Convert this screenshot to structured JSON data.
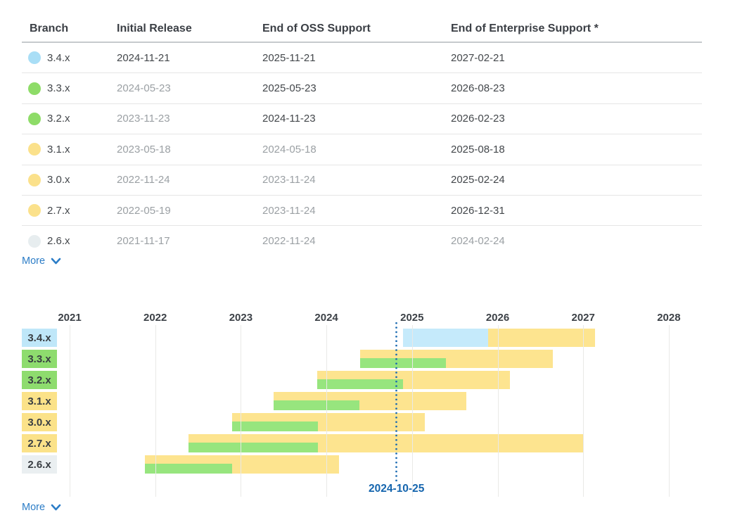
{
  "table": {
    "headers": [
      "Branch",
      "Initial Release",
      "End of OSS Support",
      "End of Enterprise Support *"
    ],
    "rows": [
      {
        "branch": "3.4.x",
        "dot_color": "#a9def6",
        "initial": {
          "text": "2024-11-21",
          "muted": false
        },
        "oss": {
          "text": "2025-11-21",
          "muted": false
        },
        "enterprise": {
          "text": "2027-02-21",
          "muted": false
        }
      },
      {
        "branch": "3.3.x",
        "dot_color": "#8edc68",
        "initial": {
          "text": "2024-05-23",
          "muted": true
        },
        "oss": {
          "text": "2025-05-23",
          "muted": false
        },
        "enterprise": {
          "text": "2026-08-23",
          "muted": false
        }
      },
      {
        "branch": "3.2.x",
        "dot_color": "#8edc68",
        "initial": {
          "text": "2023-11-23",
          "muted": true
        },
        "oss": {
          "text": "2024-11-23",
          "muted": false
        },
        "enterprise": {
          "text": "2026-02-23",
          "muted": false
        }
      },
      {
        "branch": "3.1.x",
        "dot_color": "#fbe18b",
        "initial": {
          "text": "2023-05-18",
          "muted": true
        },
        "oss": {
          "text": "2024-05-18",
          "muted": true
        },
        "enterprise": {
          "text": "2025-08-18",
          "muted": false
        }
      },
      {
        "branch": "3.0.x",
        "dot_color": "#fbe18b",
        "initial": {
          "text": "2022-11-24",
          "muted": true
        },
        "oss": {
          "text": "2023-11-24",
          "muted": true
        },
        "enterprise": {
          "text": "2025-02-24",
          "muted": false
        }
      },
      {
        "branch": "2.7.x",
        "dot_color": "#fbe18b",
        "initial": {
          "text": "2022-05-19",
          "muted": true
        },
        "oss": {
          "text": "2023-11-24",
          "muted": true
        },
        "enterprise": {
          "text": "2026-12-31",
          "muted": false
        }
      },
      {
        "branch": "2.6.x",
        "dot_color": "#e7edef",
        "initial": {
          "text": "2021-11-17",
          "muted": true
        },
        "oss": {
          "text": "2022-11-24",
          "muted": true
        },
        "enterprise": {
          "text": "2024-02-24",
          "muted": true
        }
      }
    ],
    "more_label": "More"
  },
  "chart_data": {
    "type": "gantt",
    "x_axis": {
      "tick_years": [
        2021,
        2022,
        2023,
        2024,
        2025,
        2026,
        2027,
        2028
      ]
    },
    "today_marker": {
      "date": "2024-10-25",
      "label": "2024-10-25",
      "color": "#1a6ab1"
    },
    "bar_colors": {
      "enterprise": "#fde48f",
      "oss": "#97e57e",
      "oss_upcoming": "#c5eafb"
    },
    "rows": [
      {
        "label": "3.4.x",
        "label_bg": "#bfe7f9",
        "release": "2024-11-21",
        "oss_end": "2025-11-21",
        "enterprise_end": "2027-02-21",
        "oss_style": "upcoming"
      },
      {
        "label": "3.3.x",
        "label_bg": "#8edc6e",
        "release": "2024-05-23",
        "oss_end": "2025-05-23",
        "enterprise_end": "2026-08-23",
        "oss_style": "released"
      },
      {
        "label": "3.2.x",
        "label_bg": "#8edc6e",
        "release": "2023-11-23",
        "oss_end": "2024-11-23",
        "enterprise_end": "2026-02-23",
        "oss_style": "released"
      },
      {
        "label": "3.1.x",
        "label_bg": "#fbe289",
        "release": "2023-05-18",
        "oss_end": "2024-05-18",
        "enterprise_end": "2025-08-18",
        "oss_style": "released"
      },
      {
        "label": "3.0.x",
        "label_bg": "#fbe289",
        "release": "2022-11-24",
        "oss_end": "2023-11-24",
        "enterprise_end": "2025-02-24",
        "oss_style": "released"
      },
      {
        "label": "2.7.x",
        "label_bg": "#fbe289",
        "release": "2022-05-19",
        "oss_end": "2023-11-24",
        "enterprise_end": "2026-12-31",
        "oss_style": "released"
      },
      {
        "label": "2.6.x",
        "label_bg": "#eaeff1",
        "release": "2021-11-17",
        "oss_end": "2022-11-24",
        "enterprise_end": "2024-02-24",
        "oss_style": "released"
      }
    ],
    "more_label": "More"
  },
  "colors": {
    "link": "#2c7dc7",
    "text_dark": "#43474b",
    "text_muted": "#9ba0a4"
  }
}
